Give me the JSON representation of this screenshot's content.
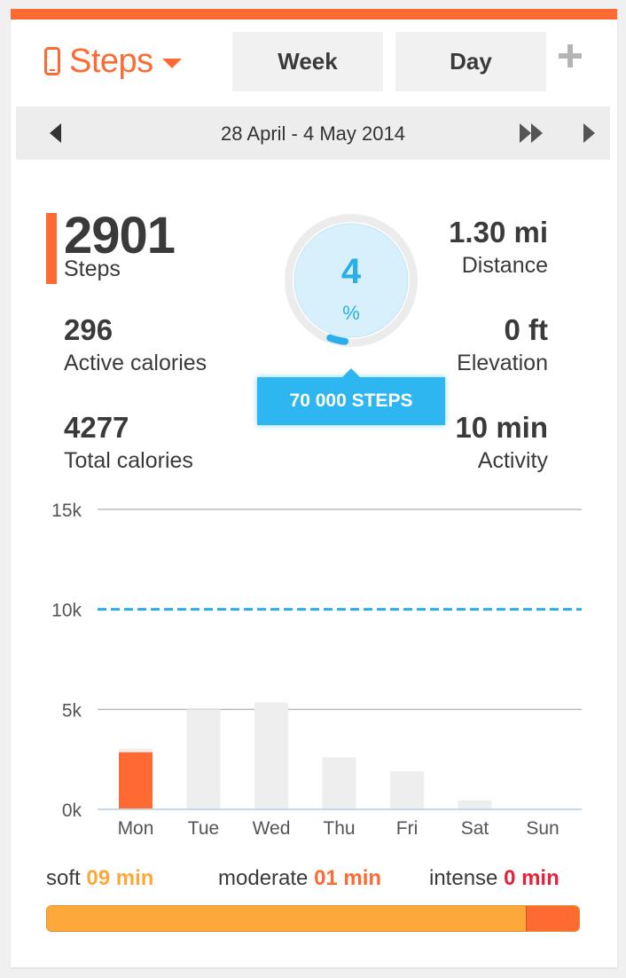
{
  "header": {
    "metric": "Steps",
    "tabs": [
      {
        "label": "Week",
        "selected": true
      },
      {
        "label": "Day",
        "selected": false
      }
    ],
    "icons": {
      "metric": "phone-icon",
      "dropdown": "caret-down-icon",
      "add": "plus-icon"
    }
  },
  "date_nav": {
    "range": "28 April - 4 May 2014",
    "icons": {
      "prev": "arrow-left-icon",
      "jump": "fast-forward-icon",
      "next": "arrow-right-icon"
    }
  },
  "summary": {
    "steps": {
      "value": "2901",
      "label": "Steps"
    },
    "active_calories": {
      "value": "296",
      "label": "Active calories"
    },
    "total_calories": {
      "value": "4277",
      "label": "Total calories"
    },
    "distance": {
      "value": "1.30 mi",
      "label": "Distance"
    },
    "elevation": {
      "value": "0 ft",
      "label": "Elevation"
    },
    "activity": {
      "value": "10 min",
      "label": "Activity"
    },
    "goal_percent": "4",
    "goal_percent_unit": "%",
    "goal_progress": 0.04,
    "goal_badge": "70 000 STEPS"
  },
  "chart_data": {
    "type": "bar",
    "categories": [
      "Mon",
      "Tue",
      "Wed",
      "Thu",
      "Fri",
      "Sat",
      "Sun"
    ],
    "values": [
      2901,
      5000,
      5350,
      2600,
      1900,
      450,
      0
    ],
    "ylim": [
      0,
      15000
    ],
    "yticks": [
      0,
      5000,
      10000,
      15000
    ],
    "ytick_labels": [
      "0k",
      "5k",
      "10k",
      "15k"
    ],
    "goal_line": 10000,
    "highlight_index": 0,
    "colors": {
      "highlight": "#ff6a33",
      "bar": "#eeeeee",
      "goal": "#2aaee8",
      "grid": "#bbbbbb"
    }
  },
  "activity": {
    "soft": {
      "label": "soft",
      "value": "09 min",
      "minutes": 9
    },
    "moderate": {
      "label": "moderate",
      "value": "01 min",
      "minutes": 1
    },
    "intense": {
      "label": "intense",
      "value": "0 min",
      "minutes": 0
    },
    "colors": {
      "soft": "#fca83a",
      "moderate": "#ff6a33",
      "intense": "#e8213a"
    }
  },
  "colors": {
    "accent": "#ff6a33",
    "goal_blue": "#2aaee8"
  }
}
